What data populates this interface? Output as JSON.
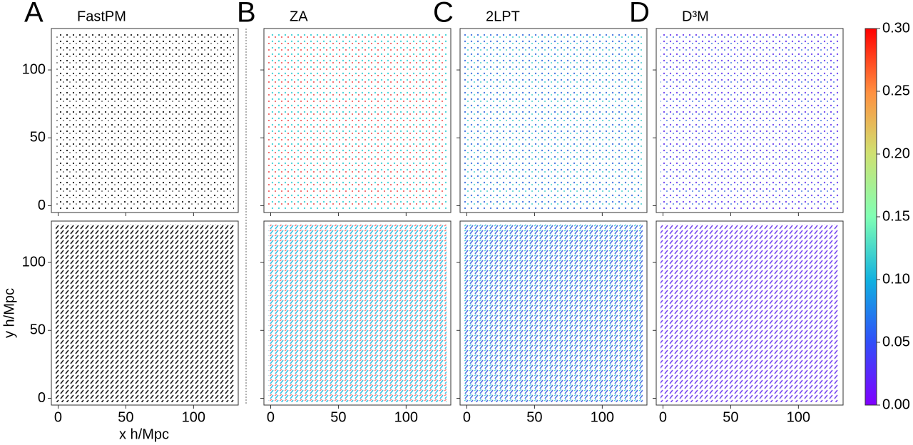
{
  "chart_data": {
    "type": "scatter",
    "panels": [
      {
        "letter": "A",
        "title": "FastPM"
      },
      {
        "letter": "B",
        "title": "ZA"
      },
      {
        "letter": "C",
        "title": "2LPT"
      },
      {
        "letter": "D",
        "title": "D³M"
      }
    ],
    "x_label": "x h/Mpc",
    "y_label": "y h/Mpc",
    "xlim": [
      -5,
      133
    ],
    "ylim": [
      -5,
      130.5
    ],
    "xticks": [
      0,
      50,
      100
    ],
    "yticks": [
      0,
      50,
      100
    ],
    "colorbar": {
      "lim": [
        0,
        0.3
      ],
      "ticks": [
        {
          "value": 0,
          "label": "0.00"
        },
        {
          "value": 0.05,
          "label": "0.05"
        },
        {
          "value": 0.1,
          "label": "0.10"
        },
        {
          "value": 0.15,
          "label": "0.15"
        },
        {
          "value": 0.2,
          "label": "0.20"
        },
        {
          "value": 0.25,
          "label": "0.25"
        },
        {
          "value": 0.3,
          "label": "0.30"
        }
      ]
    }
  }
}
